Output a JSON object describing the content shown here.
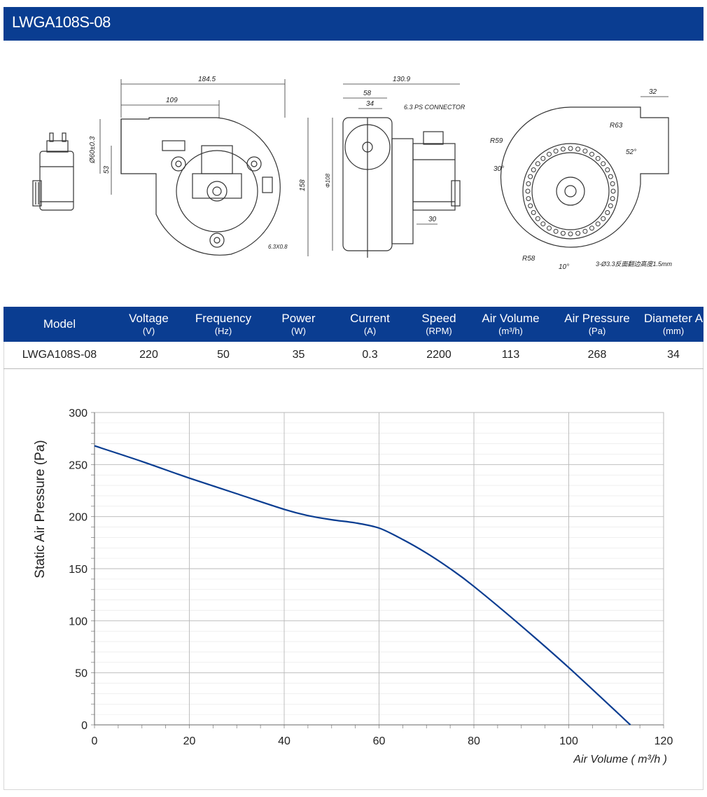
{
  "header": {
    "title": "LWGA108S-08"
  },
  "drawing": {
    "dims": {
      "d184": "184.5",
      "d109": "109",
      "d60": "Ø60±0.3",
      "d53": "53",
      "d158": "158",
      "d63x08": "6.3X0.8",
      "d1309": "130.9",
      "d58": "58",
      "d34": "34",
      "connector": "6.3 PS CONNECTOR",
      "d108": "Φ108",
      "d30": "30",
      "d32": "32",
      "r63": "R63",
      "r59": "R59",
      "a52": "52°",
      "a30": "30°",
      "r58": "R58",
      "a10": "10°",
      "holes": "3-Ø3.3反面翻边高度1.5mm"
    }
  },
  "specs": {
    "headers": [
      {
        "label": "Model",
        "unit": ""
      },
      {
        "label": "Voltage",
        "unit": "(V)"
      },
      {
        "label": "Frequency",
        "unit": "(Hz)"
      },
      {
        "label": "Power",
        "unit": "(W)"
      },
      {
        "label": "Current",
        "unit": "(A)"
      },
      {
        "label": "Speed",
        "unit": "(RPM)"
      },
      {
        "label": "Air Volume",
        "unit": "(m³/h)"
      },
      {
        "label": "Air Pressure",
        "unit": "(Pa)"
      },
      {
        "label": "Diameter A",
        "unit": "(mm)"
      }
    ],
    "row": [
      "LWGA108S-08",
      "220",
      "50",
      "35",
      "0.3",
      "2200",
      "113",
      "268",
      "34"
    ]
  },
  "colors": {
    "brand": "#0a3d91",
    "curve": "#0a3d91",
    "grid": "#b8b8b8"
  },
  "chart_data": {
    "type": "line",
    "xlabel": "Air Volume ( m³/h )",
    "ylabel": "Static Air Pressure  (Pa)",
    "xlim": [
      0,
      120
    ],
    "ylim": [
      0,
      300
    ],
    "xticks": [
      0,
      20,
      40,
      60,
      80,
      100,
      120
    ],
    "yticks": [
      0,
      50,
      100,
      150,
      200,
      250,
      300
    ],
    "grid": true,
    "series": [
      {
        "x": [
          0,
          10,
          20,
          30,
          40,
          45,
          50,
          55,
          60,
          65,
          70,
          75,
          80,
          90,
          100,
          113
        ],
        "y": [
          268,
          253,
          237,
          222,
          207,
          201,
          197,
          194,
          189,
          178,
          165,
          150,
          133,
          95,
          55,
          0
        ]
      }
    ]
  }
}
